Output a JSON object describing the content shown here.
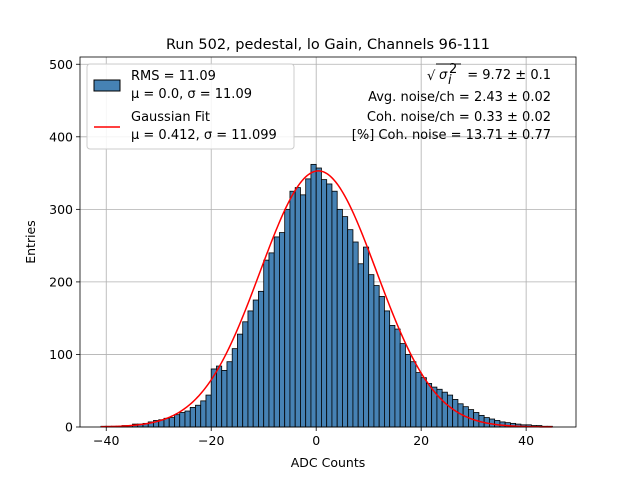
{
  "chart_data": {
    "type": "bar",
    "title": "Run 502, pedestal, lo Gain, Channels 96-111",
    "xlabel": "ADC Counts",
    "ylabel": "Entries",
    "xlim": [
      -45,
      49.5
    ],
    "ylim": [
      0,
      510
    ],
    "grid": true,
    "x_ticks": [
      -40,
      -20,
      0,
      20,
      40
    ],
    "x_tick_labels": [
      "−40",
      "−20",
      "0",
      "20",
      "40"
    ],
    "y_ticks": [
      0,
      100,
      200,
      300,
      400,
      500
    ],
    "y_tick_labels": [
      "0",
      "100",
      "200",
      "300",
      "400",
      "500"
    ],
    "bin_width": 1,
    "bin_left_edges": [
      -41,
      -40,
      -39,
      -38,
      -37,
      -36,
      -35,
      -34,
      -33,
      -32,
      -31,
      -30,
      -29,
      -28,
      -27,
      -26,
      -25,
      -24,
      -23,
      -22,
      -21,
      -20,
      -19,
      -18,
      -17,
      -16,
      -15,
      -14,
      -13,
      -12,
      -11,
      -10,
      -9,
      -8,
      -7,
      -6,
      -5,
      -4,
      -3,
      -2,
      -1,
      0,
      1,
      2,
      3,
      4,
      5,
      6,
      7,
      8,
      9,
      10,
      11,
      12,
      13,
      14,
      15,
      16,
      17,
      18,
      19,
      20,
      21,
      22,
      23,
      24,
      25,
      26,
      27,
      28,
      29,
      30,
      31,
      32,
      33,
      34,
      35,
      36,
      37,
      38,
      39,
      40,
      41,
      42,
      43,
      44
    ],
    "counts": [
      1,
      1,
      1,
      1,
      2,
      2,
      4,
      4,
      5,
      7,
      9,
      10,
      12,
      13,
      17,
      20,
      22,
      27,
      30,
      36,
      44,
      80,
      84,
      78,
      90,
      108,
      128,
      145,
      160,
      175,
      187,
      230,
      240,
      262,
      268,
      300,
      325,
      330,
      320,
      342,
      362,
      357,
      341,
      335,
      325,
      300,
      290,
      272,
      255,
      225,
      248,
      210,
      195,
      180,
      160,
      140,
      135,
      115,
      100,
      90,
      75,
      68,
      60,
      55,
      52,
      48,
      44,
      38,
      32,
      28,
      24,
      20,
      16,
      13,
      11,
      9,
      7,
      6,
      5,
      4,
      3,
      3,
      2,
      2,
      1,
      1
    ],
    "series": [
      {
        "name": "RMS = 11.09",
        "name_line2": "μ = 0.0, σ = 11.09",
        "kind": "histogram",
        "color": "#4682b4",
        "edgecolor": "#000000"
      },
      {
        "name": "Gaussian Fit",
        "name_line2": "μ = 0.412, σ = 11.099",
        "kind": "line",
        "color": "#ff0000",
        "amplitude": 353,
        "mu": 0.412,
        "sigma": 11.099,
        "x_range": [
          -41,
          45
        ]
      }
    ],
    "legend_position": "upper left",
    "annotations": [
      {
        "lead": "= 9.72 ± 0.1",
        "sqrt_symbol": "√",
        "sigma_symbol": "σ",
        "sup": "2",
        "sub": "i"
      },
      {
        "text": "Avg. noise/ch = 2.43 ± 0.02"
      },
      {
        "text": "Coh. noise/ch = 0.33 ± 0.02"
      },
      {
        "text": "[%] Coh. noise = 13.71 ± 0.77"
      }
    ]
  }
}
